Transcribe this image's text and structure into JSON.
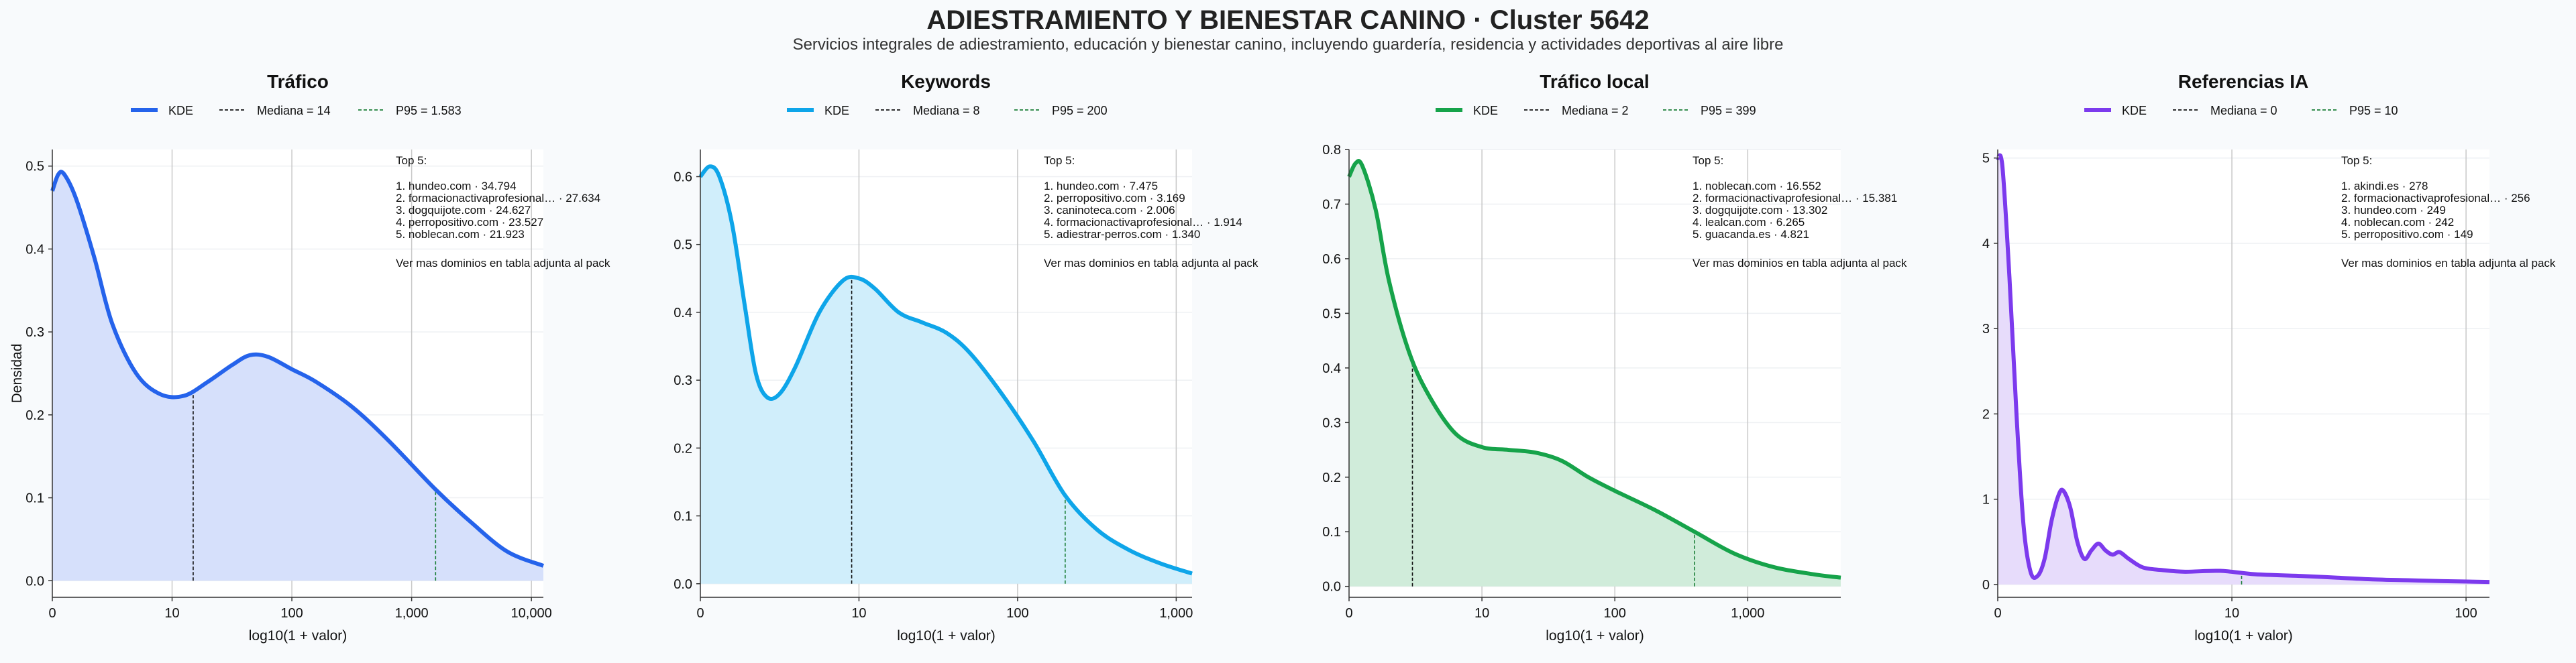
{
  "title": "ADIESTRAMIENTO Y BIENESTAR CANINO · Cluster 5642",
  "subtitle": "Servicios integrales de adiestramiento, educación y bienestar canino, incluyendo guardería, residencia y actividades deportivas al aire libre",
  "colors": {
    "traffic": "#2563eb",
    "keywords": "#0ea5e9",
    "local": "#16a34a",
    "ia": "#7c3aed"
  },
  "chart_data": [
    {
      "type": "area",
      "title": "Tráfico",
      "color": "#2563eb",
      "fill": "#d6e0fb",
      "xlabel": "log10(1 + valor)",
      "ylabel": "Densidad",
      "x_scale": "log10(1+x)",
      "x_max_log": 4.1,
      "y_range": [
        -0.02,
        0.52
      ],
      "xticks": [
        {
          "v": 0,
          "label": "0"
        },
        {
          "v": 1,
          "label": "10"
        },
        {
          "v": 2,
          "label": "100"
        },
        {
          "v": 3,
          "label": "1,000"
        },
        {
          "v": 4,
          "label": "10,000"
        }
      ],
      "yticks": [
        {
          "v": 0,
          "label": "0.0"
        },
        {
          "v": 0.1,
          "label": "0.1"
        },
        {
          "v": 0.2,
          "label": "0.2"
        },
        {
          "v": 0.3,
          "label": "0.3"
        },
        {
          "v": 0.4,
          "label": "0.4"
        },
        {
          "v": 0.5,
          "label": "0.5"
        }
      ],
      "legend": {
        "kde": "KDE",
        "median": "Mediana = 14",
        "p95": "P95 = 1.583"
      },
      "median_log": 1.176,
      "p95_log": 3.2,
      "top5_title": "Top 5:",
      "top5": [
        "1. hundeo.com · 34.794",
        "2. formacionactivaprofesional… · 27.634",
        "3. dogquijote.com · 24.627",
        "4. perropositivo.com · 23.527",
        "5. noblecan.com · 21.923"
      ],
      "note": "Ver mas dominios en tabla adjunta al pack",
      "kde": [
        [
          0,
          0.47
        ],
        [
          0.05,
          0.49
        ],
        [
          0.1,
          0.49
        ],
        [
          0.2,
          0.46
        ],
        [
          0.35,
          0.39
        ],
        [
          0.5,
          0.31
        ],
        [
          0.7,
          0.25
        ],
        [
          0.9,
          0.225
        ],
        [
          1.1,
          0.223
        ],
        [
          1.3,
          0.24
        ],
        [
          1.5,
          0.26
        ],
        [
          1.65,
          0.272
        ],
        [
          1.8,
          0.27
        ],
        [
          2.0,
          0.255
        ],
        [
          2.2,
          0.24
        ],
        [
          2.5,
          0.21
        ],
        [
          2.8,
          0.17
        ],
        [
          3.2,
          0.11
        ],
        [
          3.5,
          0.07
        ],
        [
          3.8,
          0.035
        ],
        [
          4.1,
          0.018
        ]
      ]
    },
    {
      "type": "area",
      "title": "Keywords",
      "color": "#0ea5e9",
      "fill": "#d0eefb",
      "xlabel": "log10(1 + valor)",
      "ylabel": "",
      "x_scale": "log10(1+x)",
      "x_max_log": 3.1,
      "y_range": [
        -0.02,
        0.64
      ],
      "xticks": [
        {
          "v": 0,
          "label": "0"
        },
        {
          "v": 1,
          "label": "10"
        },
        {
          "v": 2,
          "label": "100"
        },
        {
          "v": 3,
          "label": "1,000"
        }
      ],
      "yticks": [
        {
          "v": 0,
          "label": "0.0"
        },
        {
          "v": 0.1,
          "label": "0.1"
        },
        {
          "v": 0.2,
          "label": "0.2"
        },
        {
          "v": 0.3,
          "label": "0.3"
        },
        {
          "v": 0.4,
          "label": "0.4"
        },
        {
          "v": 0.5,
          "label": "0.5"
        },
        {
          "v": 0.6,
          "label": "0.6"
        }
      ],
      "legend": {
        "kde": "KDE",
        "median": "Mediana = 8",
        "p95": "P95 = 200"
      },
      "median_log": 0.954,
      "p95_log": 2.3,
      "top5_title": "Top 5:",
      "top5": [
        "1. hundeo.com · 7.475",
        "2. perropositivo.com · 3.169",
        "3. caninoteca.com · 2.006",
        "4. formacionactivaprofesional… · 1.914",
        "5. adiestrar-perros.com · 1.340"
      ],
      "note": "Ver mas dominios en tabla adjunta al pack",
      "kde": [
        [
          0,
          0.6
        ],
        [
          0.06,
          0.615
        ],
        [
          0.12,
          0.6
        ],
        [
          0.2,
          0.53
        ],
        [
          0.28,
          0.41
        ],
        [
          0.35,
          0.31
        ],
        [
          0.42,
          0.275
        ],
        [
          0.5,
          0.28
        ],
        [
          0.6,
          0.32
        ],
        [
          0.75,
          0.4
        ],
        [
          0.9,
          0.447
        ],
        [
          1.0,
          0.45
        ],
        [
          1.1,
          0.435
        ],
        [
          1.25,
          0.4
        ],
        [
          1.4,
          0.385
        ],
        [
          1.55,
          0.37
        ],
        [
          1.7,
          0.34
        ],
        [
          1.9,
          0.28
        ],
        [
          2.1,
          0.21
        ],
        [
          2.3,
          0.13
        ],
        [
          2.5,
          0.08
        ],
        [
          2.7,
          0.05
        ],
        [
          2.9,
          0.03
        ],
        [
          3.1,
          0.015
        ]
      ]
    },
    {
      "type": "area",
      "title": "Tráfico local",
      "color": "#16a34a",
      "fill": "#d0ecda",
      "xlabel": "log10(1 + valor)",
      "ylabel": "",
      "x_scale": "log10(1+x)",
      "x_max_log": 3.7,
      "y_range": [
        -0.02,
        0.8
      ],
      "xticks": [
        {
          "v": 0,
          "label": "0"
        },
        {
          "v": 1,
          "label": "10"
        },
        {
          "v": 2,
          "label": "100"
        },
        {
          "v": 3,
          "label": "1,000"
        }
      ],
      "yticks": [
        {
          "v": 0,
          "label": "0.0"
        },
        {
          "v": 0.1,
          "label": "0.1"
        },
        {
          "v": 0.2,
          "label": "0.2"
        },
        {
          "v": 0.3,
          "label": "0.3"
        },
        {
          "v": 0.4,
          "label": "0.4"
        },
        {
          "v": 0.5,
          "label": "0.5"
        },
        {
          "v": 0.6,
          "label": "0.6"
        },
        {
          "v": 0.7,
          "label": "0.7"
        },
        {
          "v": 0.8,
          "label": "0.8"
        }
      ],
      "legend": {
        "kde": "KDE",
        "median": "Mediana = 2",
        "p95": "P95 = 399"
      },
      "median_log": 0.477,
      "p95_log": 2.6,
      "top5_title": "Top 5:",
      "top5": [
        "1. noblecan.com · 16.552",
        "2. formacionactivaprofesional… · 15.381",
        "3. dogquijote.com · 13.302",
        "4. lealcan.com · 6.265",
        "5. guacanda.es · 4.821"
      ],
      "note": "Ver mas dominios en tabla adjunta al pack",
      "kde": [
        [
          0,
          0.75
        ],
        [
          0.05,
          0.775
        ],
        [
          0.1,
          0.77
        ],
        [
          0.2,
          0.69
        ],
        [
          0.3,
          0.56
        ],
        [
          0.45,
          0.43
        ],
        [
          0.6,
          0.35
        ],
        [
          0.8,
          0.28
        ],
        [
          1.0,
          0.255
        ],
        [
          1.2,
          0.25
        ],
        [
          1.4,
          0.245
        ],
        [
          1.6,
          0.23
        ],
        [
          1.8,
          0.2
        ],
        [
          2.0,
          0.175
        ],
        [
          2.3,
          0.14
        ],
        [
          2.6,
          0.1
        ],
        [
          2.9,
          0.06
        ],
        [
          3.2,
          0.035
        ],
        [
          3.5,
          0.022
        ],
        [
          3.7,
          0.016
        ]
      ]
    },
    {
      "type": "area",
      "title": "Referencias IA",
      "color": "#7c3aed",
      "fill": "#e7dcfb",
      "xlabel": "log10(1 + valor)",
      "ylabel": "",
      "x_scale": "log10(1+x)",
      "x_max_log": 2.1,
      "y_range": [
        -0.15,
        5.1
      ],
      "xticks": [
        {
          "v": 0,
          "label": "0"
        },
        {
          "v": 1,
          "label": "10"
        },
        {
          "v": 2,
          "label": "100"
        }
      ],
      "yticks": [
        {
          "v": 0,
          "label": "0"
        },
        {
          "v": 1,
          "label": "1"
        },
        {
          "v": 2,
          "label": "2"
        },
        {
          "v": 3,
          "label": "3"
        },
        {
          "v": 4,
          "label": "4"
        },
        {
          "v": 5,
          "label": "5"
        }
      ],
      "legend": {
        "kde": "KDE",
        "median": "Mediana = 0",
        "p95": "P95 = 10"
      },
      "median_log": 0,
      "p95_log": 1.0414,
      "top5_title": "Top 5:",
      "top5": [
        "1. akindi.es · 278",
        "2. formacionactivaprofesional… · 256",
        "3. hundeo.com · 249",
        "4. noblecan.com · 242",
        "5. perropositivo.com · 149"
      ],
      "note": "Ver mas dominios en tabla adjunta al pack",
      "kde": [
        [
          0,
          5.0
        ],
        [
          0.02,
          4.9
        ],
        [
          0.05,
          3.6
        ],
        [
          0.08,
          2.0
        ],
        [
          0.11,
          0.7
        ],
        [
          0.14,
          0.15
        ],
        [
          0.17,
          0.1
        ],
        [
          0.2,
          0.3
        ],
        [
          0.23,
          0.75
        ],
        [
          0.26,
          1.05
        ],
        [
          0.28,
          1.1
        ],
        [
          0.31,
          0.9
        ],
        [
          0.34,
          0.5
        ],
        [
          0.37,
          0.3
        ],
        [
          0.4,
          0.4
        ],
        [
          0.43,
          0.48
        ],
        [
          0.46,
          0.4
        ],
        [
          0.49,
          0.35
        ],
        [
          0.52,
          0.38
        ],
        [
          0.56,
          0.3
        ],
        [
          0.62,
          0.2
        ],
        [
          0.7,
          0.17
        ],
        [
          0.8,
          0.15
        ],
        [
          0.95,
          0.16
        ],
        [
          1.1,
          0.12
        ],
        [
          1.3,
          0.1
        ],
        [
          1.45,
          0.08
        ],
        [
          1.6,
          0.06
        ],
        [
          1.75,
          0.05
        ],
        [
          1.9,
          0.04
        ],
        [
          2.1,
          0.03
        ]
      ]
    }
  ]
}
